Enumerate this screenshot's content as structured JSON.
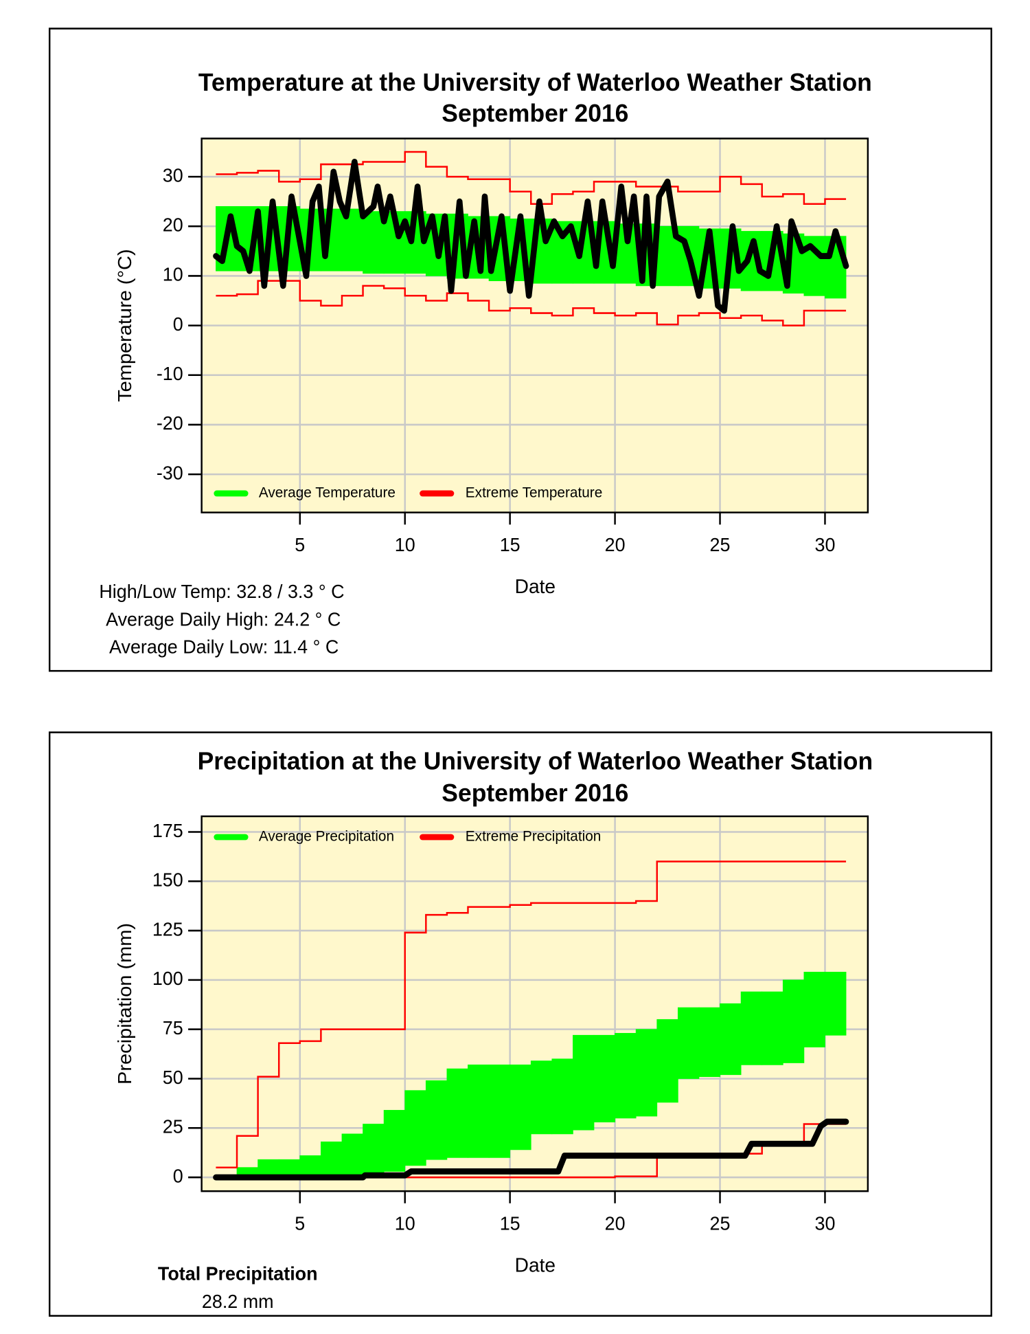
{
  "chart_data": [
    {
      "type": "line",
      "title": "Temperature at the University of Waterloo Weather Station",
      "subtitle": "September 2016",
      "x_label": "Date",
      "y_label": "Temperature (°C)",
      "xlim": [
        0.32,
        32.04
      ],
      "ylim": [
        -37.7,
        37.7
      ],
      "xticks": [
        5,
        10,
        15,
        20,
        25,
        30
      ],
      "yticks": [
        -30,
        -20,
        -10,
        0,
        10,
        20,
        30
      ],
      "grid": true,
      "legend": "bottom left",
      "days": [
        1,
        2,
        3,
        4,
        5,
        6,
        7,
        8,
        9,
        10,
        11,
        12,
        13,
        14,
        15,
        16,
        17,
        18,
        19,
        20,
        21,
        22,
        23,
        24,
        25,
        26,
        27,
        28,
        29,
        30,
        31
      ],
      "band": {
        "name": "Average Temperature",
        "color": "#00ff00",
        "upper": [
          24,
          24,
          24,
          24,
          23.5,
          23.5,
          23.5,
          23,
          23,
          23,
          22.5,
          22.5,
          22,
          22,
          21.5,
          21.5,
          21,
          21,
          21,
          20.5,
          20.5,
          20,
          20,
          19.5,
          19.5,
          19,
          19,
          18.5,
          18,
          18,
          18
        ],
        "lower": [
          11,
          11,
          11,
          11,
          11,
          11,
          11,
          10.5,
          10.5,
          10.5,
          10,
          9.5,
          9.5,
          9,
          9,
          8.5,
          8.5,
          8.5,
          8.5,
          8.5,
          8,
          8,
          8,
          7.5,
          7.5,
          7,
          7,
          6.5,
          6,
          5.5,
          5.5
        ]
      },
      "extreme": {
        "name": "Extreme Temperature",
        "color": "#ff0000",
        "upper": [
          30.5,
          30.8,
          31.2,
          29,
          29.5,
          32.5,
          32.5,
          33,
          33,
          35,
          32,
          30,
          29.5,
          29.5,
          27,
          24.5,
          26.5,
          27,
          29,
          29,
          28,
          28,
          27,
          27,
          30,
          28.5,
          26,
          26.5,
          24.5,
          25.5,
          25.5
        ],
        "lower": [
          6,
          6.3,
          9,
          9,
          5,
          4,
          6,
          8,
          7.5,
          6,
          5,
          6.5,
          5,
          3,
          3.5,
          2.5,
          2,
          3.5,
          2.5,
          2,
          2.5,
          0.2,
          2,
          2.5,
          1.5,
          2,
          1,
          0,
          3,
          3,
          3
        ]
      },
      "observed": {
        "color": "#000000",
        "x": [
          1.0,
          1.3,
          1.7,
          2.0,
          2.3,
          2.6,
          3.0,
          3.3,
          3.7,
          4.2,
          4.6,
          5.3,
          5.6,
          5.9,
          6.2,
          6.6,
          6.9,
          7.2,
          7.6,
          8.0,
          8.5,
          8.7,
          9.0,
          9.3,
          9.7,
          10.0,
          10.3,
          10.6,
          10.9,
          11.3,
          11.6,
          11.9,
          12.2,
          12.6,
          12.9,
          13.3,
          13.6,
          13.8,
          14.1,
          14.6,
          15.0,
          15.5,
          15.9,
          16.4,
          16.7,
          17.1,
          17.5,
          17.9,
          18.3,
          18.7,
          19.1,
          19.4,
          19.9,
          20.3,
          20.6,
          20.9,
          21.3,
          21.5,
          21.8,
          22.1,
          22.5,
          22.9,
          23.3,
          23.6,
          24.0,
          24.5,
          24.9,
          25.2,
          25.6,
          25.9,
          26.3,
          26.6,
          26.9,
          27.3,
          27.7,
          28.2,
          28.4,
          28.9,
          29.3,
          29.8,
          30.2,
          30.5,
          31.0
        ],
        "values": [
          14,
          13,
          22,
          16,
          15,
          11,
          23,
          8,
          25,
          8,
          26,
          10,
          25,
          28,
          14,
          31,
          25,
          22,
          33,
          22,
          24,
          28,
          21,
          26,
          18,
          21,
          17,
          28,
          17,
          22,
          14,
          22,
          7,
          25,
          10,
          21,
          11,
          26,
          11,
          22,
          7,
          22,
          6,
          25,
          17,
          21,
          18,
          20,
          14,
          25,
          12,
          25,
          12,
          28,
          17,
          26,
          9,
          26,
          8,
          26,
          29,
          18,
          17,
          13,
          6,
          19,
          4,
          3,
          20,
          11,
          13,
          17,
          11,
          10,
          20,
          8,
          21,
          15,
          16,
          14,
          14,
          19,
          12
        ]
      },
      "stats": [
        "High/Low Temp:  32.8 / 3.3 ° C",
        "Average Daily High:  24.2 ° C",
        "Average Daily Low:  11.4 ° C"
      ]
    },
    {
      "type": "line",
      "title": "Precipitation at the University of Waterloo Weather Station",
      "subtitle": "September 2016",
      "x_label": "Date",
      "y_label": "Precipitation (mm)",
      "xlim": [
        0.32,
        32.04
      ],
      "ylim": [
        -7,
        182.9
      ],
      "xticks": [
        5,
        10,
        15,
        20,
        25,
        30
      ],
      "yticks": [
        0,
        25,
        50,
        75,
        100,
        125,
        150,
        175
      ],
      "grid": true,
      "legend": "top left",
      "days": [
        1,
        2,
        3,
        4,
        5,
        6,
        7,
        8,
        9,
        10,
        11,
        12,
        13,
        14,
        15,
        16,
        17,
        18,
        19,
        20,
        21,
        22,
        23,
        24,
        25,
        26,
        27,
        28,
        29,
        30,
        31
      ],
      "band": {
        "name": "Average Precipitation",
        "color": "#00ff00",
        "upper": [
          0,
          5,
          9,
          9,
          11,
          18,
          22,
          27,
          34,
          44,
          49,
          55,
          57,
          57,
          57,
          59,
          60,
          72,
          72,
          73,
          75,
          80,
          86,
          86,
          88,
          94,
          94,
          100,
          104,
          104,
          105
        ],
        "lower": [
          0,
          0,
          0,
          0,
          0,
          0,
          1,
          2,
          3,
          6,
          9,
          10,
          10,
          10,
          14,
          22,
          22,
          24,
          28,
          30,
          31,
          38,
          50,
          51,
          52,
          57,
          57,
          58,
          66,
          72,
          72
        ]
      },
      "extreme": {
        "name": "Extreme Precipitation",
        "color": "#ff0000",
        "upper": [
          5,
          21,
          51,
          68,
          69,
          75,
          75,
          75,
          75,
          124,
          133,
          134,
          137,
          137,
          138,
          139,
          139,
          139,
          139,
          139,
          140,
          160,
          160,
          160,
          160,
          160,
          160,
          160,
          160,
          160,
          160
        ],
        "lower": [
          0,
          0,
          0,
          0,
          0,
          0,
          0,
          0,
          0,
          0,
          0,
          0,
          0,
          0,
          0,
          0,
          0,
          0,
          0,
          0.5,
          0.5,
          12,
          12,
          12,
          12,
          12,
          16,
          16,
          27,
          27,
          27
        ]
      },
      "observed": {
        "color": "#000000",
        "x": [
          1,
          8.0,
          8.1,
          10.0,
          10.3,
          17.3,
          17.6,
          26.2,
          26.5,
          29.4,
          29.8,
          30.1,
          31
        ],
        "values": [
          0,
          0,
          1,
          1,
          3,
          3,
          11,
          11,
          17,
          17,
          26,
          28.2,
          28.2
        ]
      },
      "stats": [
        "Total Precipitation",
        "28.2 mm"
      ]
    }
  ]
}
